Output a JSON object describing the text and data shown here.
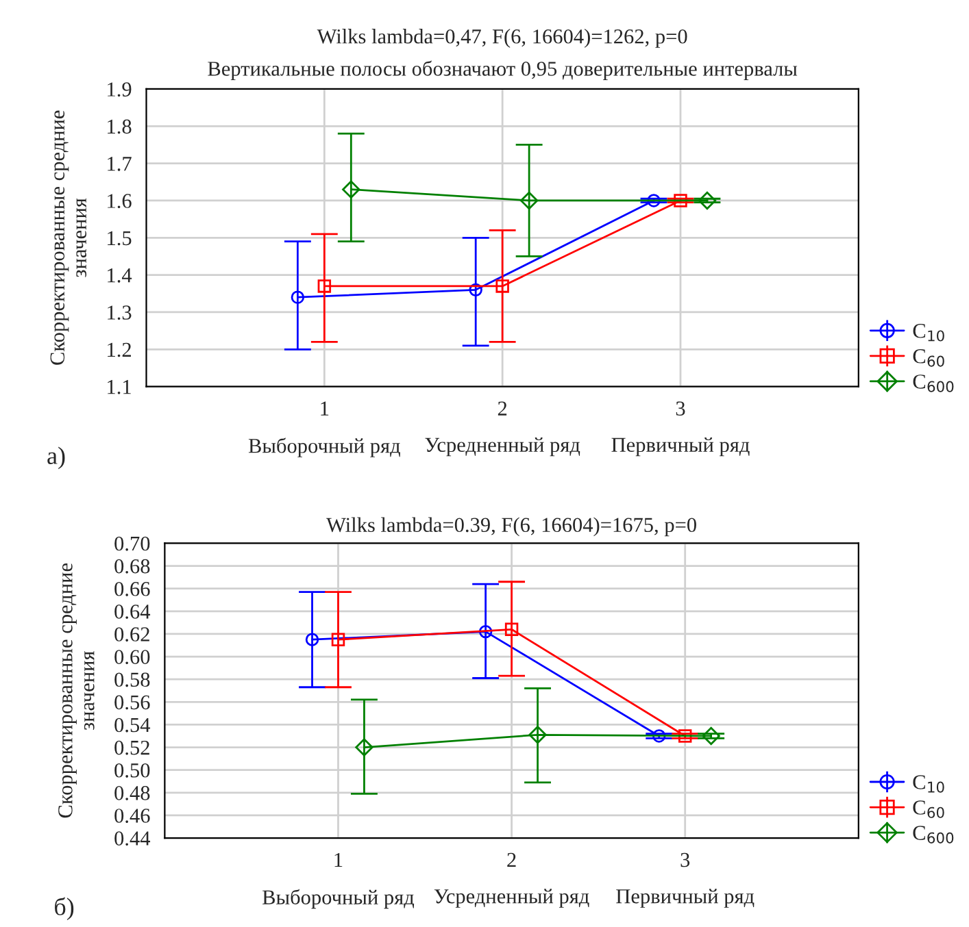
{
  "chart_data": [
    {
      "type": "line",
      "title": "Wilks lambda=0,47, F(6, 16604)=1262, p=0",
      "subtitle": "Вертикальные полосы обозначают 0,95 доверительные интервалы",
      "ylabel": "Скорректированные средние значения",
      "categories": [
        "1\nВыборочный ряд",
        "2\nУсредненный ряд",
        "3\nПервичный ряд"
      ],
      "ylim": [
        1.1,
        1.9
      ],
      "yticks": [
        1.1,
        1.2,
        1.3,
        1.4,
        1.5,
        1.6,
        1.7,
        1.8,
        1.9
      ],
      "grid": true,
      "legend": "bottom right",
      "annotations": [
        "а)"
      ],
      "series": [
        {
          "name": "C$_{10}$",
          "color": "#0000ff",
          "marker": "circle",
          "values": [
            1.34,
            1.36,
            1.6
          ],
          "errors": [
            [
              1.2,
              1.49
            ],
            [
              1.21,
              1.5
            ],
            [
              1.595,
              1.605
            ]
          ]
        },
        {
          "name": "C$_{60}$",
          "color": "#ff0000",
          "marker": "square",
          "values": [
            1.37,
            1.37,
            1.6
          ],
          "errors": [
            [
              1.22,
              1.51
            ],
            [
              1.22,
              1.52
            ],
            [
              1.595,
              1.605
            ]
          ]
        },
        {
          "name": "C$_{600}$",
          "color": "#008000",
          "marker": "diamond",
          "values": [
            1.63,
            1.6,
            1.6
          ],
          "errors": [
            [
              1.49,
              1.78
            ],
            [
              1.45,
              1.75
            ],
            [
              1.595,
              1.605
            ]
          ]
        }
      ]
    },
    {
      "type": "line",
      "title": "Wilks lambda=0.39, F(6, 16604)=1675, p=0",
      "ylabel": "Скорректированные средние значения",
      "categories": [
        "1\nВыборочный ряд",
        "2\nУсредненный ряд",
        "3\nПервичный ряд"
      ],
      "ylim": [
        0.44,
        0.7
      ],
      "yticks": [
        {
          "value": 0.44,
          "label": "0.44"
        },
        {
          "value": 0.46,
          "label": "0.46"
        },
        {
          "value": 0.48,
          "label": "0.48"
        },
        {
          "value": 0.5,
          "label": "0.50"
        },
        {
          "value": 0.52,
          "label": "0.52"
        },
        {
          "value": 0.54,
          "label": "0.54"
        },
        {
          "value": 0.56,
          "label": "0.56"
        },
        {
          "value": 0.58,
          "label": "0.58"
        },
        {
          "value": 0.6,
          "label": "0.60"
        },
        {
          "value": 0.62,
          "label": "0.62"
        },
        {
          "value": 0.64,
          "label": "0.64"
        },
        {
          "value": 0.66,
          "label": "0.66"
        },
        {
          "value": 0.68,
          "label": "0.68"
        },
        {
          "value": 0.7,
          "label": "0.70"
        }
      ],
      "grid": true,
      "legend": "bottom right",
      "annotations": [
        "б)"
      ],
      "series": [
        {
          "name": "C$_{10}$",
          "color": "#0000ff",
          "marker": "circle",
          "values": [
            0.615,
            0.622,
            0.53
          ],
          "errors": [
            [
              0.573,
              0.657
            ],
            [
              0.581,
              0.664
            ],
            [
              0.528,
              0.532
            ]
          ]
        },
        {
          "name": "C$_{60}$",
          "color": "#ff0000",
          "marker": "square",
          "values": [
            0.615,
            0.624,
            0.53
          ],
          "errors": [
            [
              0.573,
              0.657
            ],
            [
              0.583,
              0.666
            ],
            [
              0.528,
              0.532
            ]
          ]
        },
        {
          "name": "C$_{600}$",
          "color": "#008000",
          "marker": "diamond",
          "values": [
            0.52,
            0.531,
            0.53
          ],
          "errors": [
            [
              0.479,
              0.562
            ],
            [
              0.489,
              0.572
            ],
            [
              0.528,
              0.532
            ]
          ]
        }
      ]
    }
  ]
}
